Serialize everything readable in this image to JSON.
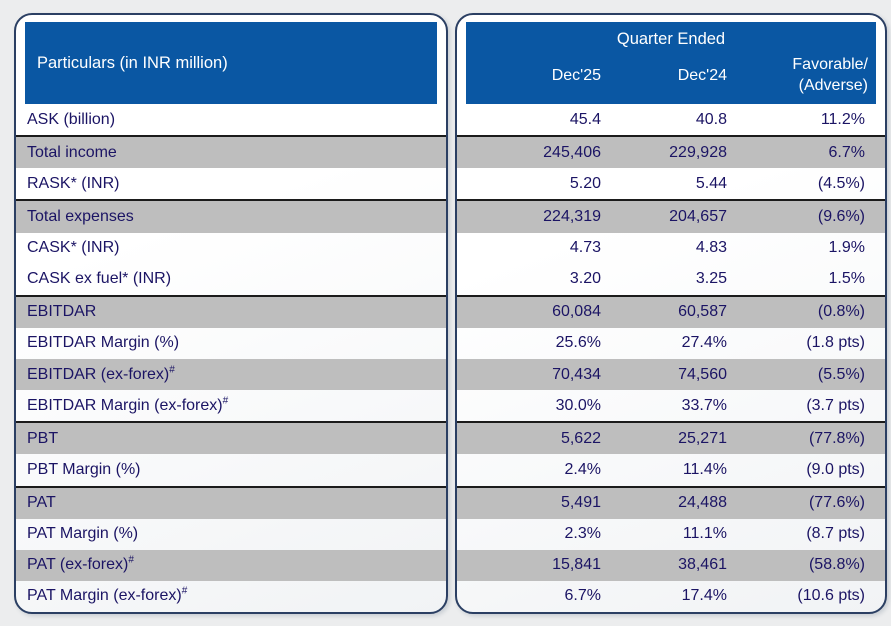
{
  "colors": {
    "page_bg": "#ECEDEE",
    "header_blue": "#0A57A3",
    "row_gray": "#BEBEBE",
    "text_navy": "#1B1464",
    "card_border": "#2B3F63",
    "separator": "#1B1B1B",
    "header_text": "#FFFFFF"
  },
  "left_panel": {
    "header": "Particulars (in INR million)"
  },
  "right_panel": {
    "header": "Quarter Ended",
    "columns": {
      "col1": "Dec'25",
      "col2": "Dec'24",
      "col3_line1": "Favorable/",
      "col3_line2": "(Adverse)"
    }
  },
  "rows": [
    {
      "label": "ASK (billion)",
      "sup": "",
      "dec25": "45.4",
      "dec24": "40.8",
      "change": "11.2%",
      "shaded": false,
      "separator_above": false
    },
    {
      "label": "Total income",
      "sup": "",
      "dec25": "245,406",
      "dec24": "229,928",
      "change": "6.7%",
      "shaded": true,
      "separator_above": true
    },
    {
      "label": "RASK* (INR)",
      "sup": "",
      "dec25": "5.20",
      "dec24": "5.44",
      "change": "(4.5%)",
      "shaded": false,
      "separator_above": false
    },
    {
      "label": "Total expenses",
      "sup": "",
      "dec25": "224,319",
      "dec24": "204,657",
      "change": "(9.6%)",
      "shaded": true,
      "separator_above": true
    },
    {
      "label": "CASK* (INR)",
      "sup": "",
      "dec25": "4.73",
      "dec24": "4.83",
      "change": "1.9%",
      "shaded": false,
      "separator_above": false
    },
    {
      "label": "CASK ex fuel* (INR)",
      "sup": "",
      "dec25": "3.20",
      "dec24": "3.25",
      "change": "1.5%",
      "shaded": false,
      "separator_above": false
    },
    {
      "label": "EBITDAR",
      "sup": "",
      "dec25": "60,084",
      "dec24": "60,587",
      "change": "(0.8%)",
      "shaded": true,
      "separator_above": true
    },
    {
      "label": "EBITDAR Margin (%)",
      "sup": "",
      "dec25": "25.6%",
      "dec24": "27.4%",
      "change": "(1.8 pts)",
      "shaded": false,
      "separator_above": false
    },
    {
      "label": "EBITDAR (ex-forex)",
      "sup": "#",
      "dec25": "70,434",
      "dec24": "74,560",
      "change": "(5.5%)",
      "shaded": true,
      "separator_above": false
    },
    {
      "label": "EBITDAR Margin (ex-forex)",
      "sup": "#",
      "dec25": "30.0%",
      "dec24": "33.7%",
      "change": "(3.7 pts)",
      "shaded": false,
      "separator_above": false
    },
    {
      "label": "PBT",
      "sup": "",
      "dec25": "5,622",
      "dec24": "25,271",
      "change": "(77.8%)",
      "shaded": true,
      "separator_above": true
    },
    {
      "label": "PBT Margin (%)",
      "sup": "",
      "dec25": "2.4%",
      "dec24": "11.4%",
      "change": "(9.0 pts)",
      "shaded": false,
      "separator_above": false
    },
    {
      "label": "PAT",
      "sup": "",
      "dec25": "5,491",
      "dec24": "24,488",
      "change": "(77.6%)",
      "shaded": true,
      "separator_above": true
    },
    {
      "label": "PAT Margin (%)",
      "sup": "",
      "dec25": "2.3%",
      "dec24": "11.1%",
      "change": "(8.7 pts)",
      "shaded": false,
      "separator_above": false
    },
    {
      "label": "PAT (ex-forex)",
      "sup": "#",
      "dec25": "15,841",
      "dec24": "38,461",
      "change": "(58.8%)",
      "shaded": true,
      "separator_above": false
    },
    {
      "label": "PAT Margin (ex-forex)",
      "sup": "#",
      "dec25": "6.7%",
      "dec24": "17.4%",
      "change": "(10.6 pts)",
      "shaded": false,
      "separator_above": false
    }
  ],
  "chart_data": {
    "type": "table",
    "title": "Quarter Ended",
    "columns": [
      "Particulars (in INR million)",
      "Dec'25",
      "Dec'24",
      "Favorable/(Adverse)"
    ],
    "rows": [
      [
        "ASK (billion)",
        "45.4",
        "40.8",
        "11.2%"
      ],
      [
        "Total income",
        "245,406",
        "229,928",
        "6.7%"
      ],
      [
        "RASK* (INR)",
        "5.20",
        "5.44",
        "(4.5%)"
      ],
      [
        "Total expenses",
        "224,319",
        "204,657",
        "(9.6%)"
      ],
      [
        "CASK* (INR)",
        "4.73",
        "4.83",
        "1.9%"
      ],
      [
        "CASK ex fuel* (INR)",
        "3.20",
        "3.25",
        "1.5%"
      ],
      [
        "EBITDAR",
        "60,084",
        "60,587",
        "(0.8%)"
      ],
      [
        "EBITDAR Margin (%)",
        "25.6%",
        "27.4%",
        "(1.8 pts)"
      ],
      [
        "EBITDAR (ex-forex)#",
        "70,434",
        "74,560",
        "(5.5%)"
      ],
      [
        "EBITDAR Margin (ex-forex)#",
        "30.0%",
        "33.7%",
        "(3.7 pts)"
      ],
      [
        "PBT",
        "5,622",
        "25,271",
        "(77.8%)"
      ],
      [
        "PBT Margin (%)",
        "2.4%",
        "11.4%",
        "(9.0 pts)"
      ],
      [
        "PAT",
        "5,491",
        "24,488",
        "(77.6%)"
      ],
      [
        "PAT Margin (%)",
        "2.3%",
        "11.1%",
        "(8.7 pts)"
      ],
      [
        "PAT (ex-forex)#",
        "15,841",
        "38,461",
        "(58.8%)"
      ],
      [
        "PAT Margin (ex-forex)#",
        "6.7%",
        "17.4%",
        "(10.6 pts)"
      ]
    ]
  }
}
